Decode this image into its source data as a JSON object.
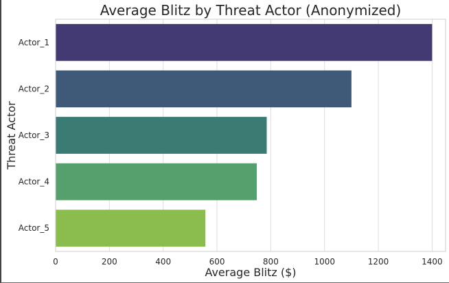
{
  "chart_data": {
    "type": "bar",
    "orientation": "horizontal",
    "title": "Average Blitz by Threat Actor (Anonymized)",
    "xlabel": "Average Blitz ($)",
    "ylabel": "Threat Actor",
    "categories": [
      "Actor_1",
      "Actor_2",
      "Actor_3",
      "Actor_4",
      "Actor_5"
    ],
    "values": [
      1400,
      1100,
      785,
      748,
      557
    ],
    "colors": [
      "#443a73",
      "#3e5a78",
      "#3a7b74",
      "#56a06d",
      "#8bbd4e"
    ],
    "xlim": [
      0,
      1450
    ],
    "xticks": [
      0,
      200,
      400,
      600,
      800,
      1000,
      1200,
      1400
    ],
    "grid": "vertical",
    "legend": "none"
  }
}
